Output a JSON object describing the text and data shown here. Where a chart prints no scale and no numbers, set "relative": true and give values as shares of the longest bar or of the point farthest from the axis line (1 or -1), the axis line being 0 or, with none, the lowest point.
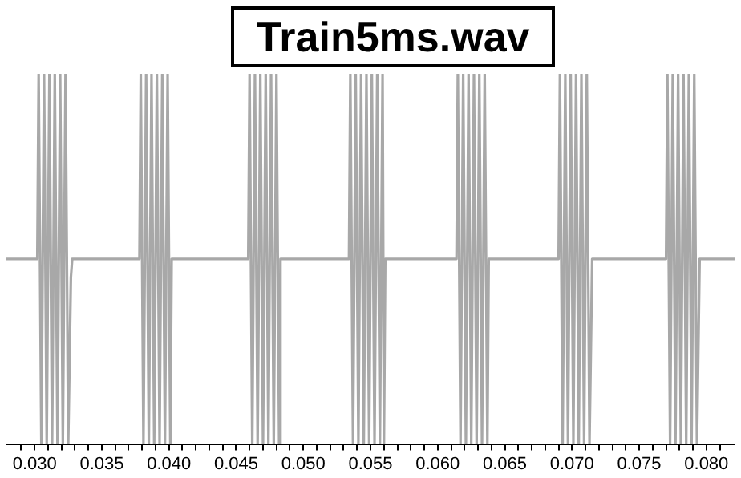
{
  "chart_data": {
    "type": "line",
    "title": "Train5ms.wav",
    "relative": true,
    "marker": "none",
    "xlim": [
      0.0279,
      0.0821
    ],
    "xticks": [
      {
        "value": 0.029,
        "label": null
      },
      {
        "value": 0.03,
        "label": "0.030"
      },
      {
        "value": 0.031,
        "label": null
      },
      {
        "value": 0.032,
        "label": null
      },
      {
        "value": 0.033,
        "label": null
      },
      {
        "value": 0.034,
        "label": null
      },
      {
        "value": 0.035,
        "label": "0.035"
      },
      {
        "value": 0.036,
        "label": null
      },
      {
        "value": 0.037,
        "label": null
      },
      {
        "value": 0.038,
        "label": null
      },
      {
        "value": 0.039,
        "label": null
      },
      {
        "value": 0.04,
        "label": "0.040"
      },
      {
        "value": 0.041,
        "label": null
      },
      {
        "value": 0.042,
        "label": null
      },
      {
        "value": 0.043,
        "label": null
      },
      {
        "value": 0.044,
        "label": null
      },
      {
        "value": 0.045,
        "label": "0.045"
      },
      {
        "value": 0.046,
        "label": null
      },
      {
        "value": 0.047,
        "label": null
      },
      {
        "value": 0.048,
        "label": null
      },
      {
        "value": 0.049,
        "label": null
      },
      {
        "value": 0.05,
        "label": "0.050"
      },
      {
        "value": 0.051,
        "label": null
      },
      {
        "value": 0.052,
        "label": null
      },
      {
        "value": 0.053,
        "label": null
      },
      {
        "value": 0.054,
        "label": null
      },
      {
        "value": 0.055,
        "label": "0.055"
      },
      {
        "value": 0.056,
        "label": null
      },
      {
        "value": 0.057,
        "label": null
      },
      {
        "value": 0.058,
        "label": null
      },
      {
        "value": 0.059,
        "label": null
      },
      {
        "value": 0.06,
        "label": "0.060"
      },
      {
        "value": 0.061,
        "label": null
      },
      {
        "value": 0.062,
        "label": null
      },
      {
        "value": 0.063,
        "label": null
      },
      {
        "value": 0.064,
        "label": null
      },
      {
        "value": 0.065,
        "label": "0.065"
      },
      {
        "value": 0.066,
        "label": null
      },
      {
        "value": 0.067,
        "label": null
      },
      {
        "value": 0.068,
        "label": null
      },
      {
        "value": 0.069,
        "label": null
      },
      {
        "value": 0.07,
        "label": "0.070"
      },
      {
        "value": 0.071,
        "label": null
      },
      {
        "value": 0.072,
        "label": null
      },
      {
        "value": 0.073,
        "label": null
      },
      {
        "value": 0.074,
        "label": null
      },
      {
        "value": 0.075,
        "label": "0.075"
      },
      {
        "value": 0.076,
        "label": null
      },
      {
        "value": 0.077,
        "label": null
      },
      {
        "value": 0.078,
        "label": null
      },
      {
        "value": 0.079,
        "label": null
      },
      {
        "value": 0.08,
        "label": "0.080"
      },
      {
        "value": 0.081,
        "label": null
      }
    ],
    "x": [
      0.0279,
      0.0302,
      0.0303,
      0.0305,
      0.0307,
      0.0309,
      0.0311,
      0.0313,
      0.0315,
      0.0317,
      0.0319,
      0.0321,
      0.0323,
      0.0325,
      0.0327,
      0.0328,
      0.0378,
      0.0379,
      0.0381,
      0.0383,
      0.0385,
      0.0387,
      0.0389,
      0.0391,
      0.0393,
      0.0395,
      0.0397,
      0.0399,
      0.0401,
      0.0402,
      0.0459,
      0.046,
      0.0462,
      0.0464,
      0.0466,
      0.0468,
      0.047,
      0.0472,
      0.0474,
      0.0476,
      0.0478,
      0.048,
      0.0482,
      0.0483,
      0.0534,
      0.0535,
      0.0537,
      0.0539,
      0.0541,
      0.0543,
      0.0545,
      0.0547,
      0.0549,
      0.0551,
      0.0553,
      0.0555,
      0.0557,
      0.0559,
      0.056,
      0.0561,
      0.0614,
      0.0615,
      0.0617,
      0.0619,
      0.0621,
      0.0623,
      0.0625,
      0.0627,
      0.0629,
      0.0631,
      0.0633,
      0.0635,
      0.0637,
      0.0638,
      0.069,
      0.0691,
      0.0693,
      0.0695,
      0.0697,
      0.0699,
      0.0701,
      0.0703,
      0.0705,
      0.0707,
      0.0709,
      0.0711,
      0.0713,
      0.0715,
      0.077,
      0.0771,
      0.0773,
      0.0775,
      0.0777,
      0.0779,
      0.0781,
      0.0783,
      0.0785,
      0.0787,
      0.0789,
      0.0791,
      0.0793,
      0.0795,
      0.0821
    ],
    "series": [
      {
        "color": "#a8a8a8",
        "values": [
          0.5,
          0.5,
          1,
          0,
          1,
          0,
          1,
          0,
          1,
          0,
          1,
          0,
          1,
          0,
          0.45,
          0.5,
          0.5,
          1,
          0,
          1,
          0,
          1,
          0,
          1,
          0,
          1,
          0,
          1,
          0,
          0.5,
          0.5,
          1,
          0,
          1,
          0,
          1,
          0,
          1,
          0,
          1,
          0,
          1,
          0,
          0.5,
          0.5,
          1,
          0,
          1,
          0,
          1,
          0,
          1,
          0,
          1,
          0,
          1,
          0,
          1,
          0,
          0.5,
          0.5,
          1,
          0,
          1,
          0,
          1,
          0,
          1,
          0,
          1,
          0,
          1,
          0,
          0.5,
          0.5,
          1,
          0,
          1,
          0,
          1,
          0,
          1,
          0,
          1,
          0,
          1,
          0,
          0.5,
          0.5,
          1,
          0,
          1,
          0,
          1,
          0,
          1,
          0,
          1,
          0,
          1,
          0,
          0.5,
          0.5
        ]
      }
    ]
  }
}
